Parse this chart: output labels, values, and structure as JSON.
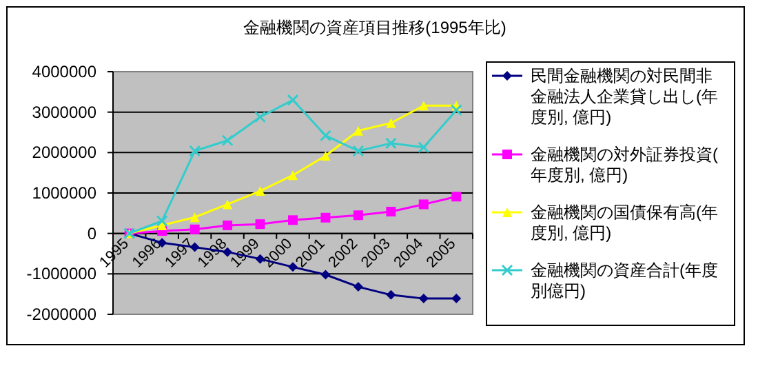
{
  "chart_data": {
    "type": "line",
    "title": "金融機関の資産項目推移(1995年比)",
    "categories": [
      "1995",
      "1996",
      "1997",
      "1998",
      "1999",
      "2000",
      "2001",
      "2002",
      "2003",
      "2004",
      "2005"
    ],
    "series": [
      {
        "name": "民間金融機関の対民間非金融法人企業貸し出し(年度別, 億円)",
        "color": "#000080",
        "marker": "diamond",
        "values": [
          0,
          -230000,
          -340000,
          -460000,
          -630000,
          -830000,
          -1020000,
          -1320000,
          -1520000,
          -1610000,
          -1610000
        ]
      },
      {
        "name": "金融機関の対外証券投資(年度別, 億円)",
        "color": "#ff00ff",
        "marker": "square",
        "values": [
          0,
          60000,
          100000,
          200000,
          230000,
          330000,
          390000,
          450000,
          540000,
          720000,
          910000
        ]
      },
      {
        "name": "金融機関の国債保有高(年度別, 億円)",
        "color": "#ffff00",
        "marker": "triangle",
        "values": [
          0,
          200000,
          400000,
          720000,
          1050000,
          1440000,
          1920000,
          2540000,
          2730000,
          3160000,
          3160000
        ]
      },
      {
        "name": "金融機関の資産合計(年度別億円)",
        "color": "#33cccc",
        "marker": "cross",
        "values": [
          0,
          310000,
          2040000,
          2300000,
          2880000,
          3300000,
          2420000,
          2040000,
          2230000,
          2130000,
          3050000
        ]
      }
    ],
    "ylim": [
      -2000000,
      4000000
    ],
    "yticks": [
      -2000000,
      -1000000,
      0,
      1000000,
      2000000,
      3000000,
      4000000
    ],
    "grid": "y",
    "legend": "right",
    "line_style": "solid"
  }
}
